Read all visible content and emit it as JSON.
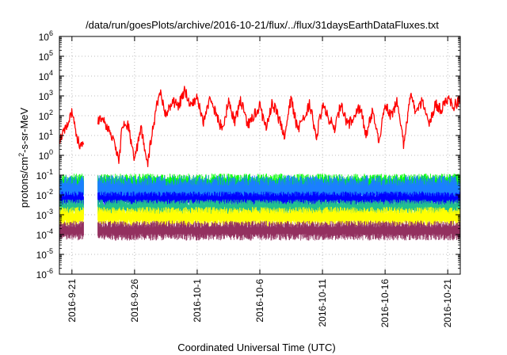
{
  "chart_data": {
    "type": "line",
    "title": "/data/run/goesPlots/archive/2016-10-21/flux/../flux/31daysEarthDataFluxes.txt",
    "xlabel": "Coordinated Universal Time (UTC)",
    "ylabel_base": "protons/cm",
    "ylabel_sup": "2",
    "ylabel_tail": "-s-sr-MeV",
    "y_scale": "log",
    "ylim": [
      1e-06,
      1000000.0
    ],
    "y_ticks": [
      {
        "value": 1e-06,
        "base": "10",
        "exp": "-6"
      },
      {
        "value": 1e-05,
        "base": "10",
        "exp": "-5"
      },
      {
        "value": 0.0001,
        "base": "10",
        "exp": "-4"
      },
      {
        "value": 0.001,
        "base": "10",
        "exp": "-3"
      },
      {
        "value": 0.01,
        "base": "10",
        "exp": "-2"
      },
      {
        "value": 0.1,
        "base": "10",
        "exp": "-1"
      },
      {
        "value": 1,
        "base": "10",
        "exp": "0"
      },
      {
        "value": 10.0,
        "base": "10",
        "exp": "1"
      },
      {
        "value": 100.0,
        "base": "10",
        "exp": "2"
      },
      {
        "value": 1000.0,
        "base": "10",
        "exp": "3"
      },
      {
        "value": 10000.0,
        "base": "10",
        "exp": "4"
      },
      {
        "value": 100000.0,
        "base": "10",
        "exp": "5"
      },
      {
        "value": 1000000.0,
        "base": "10",
        "exp": "6"
      }
    ],
    "xlim": [
      "2016-09-20",
      "2016-10-22"
    ],
    "x_ticks": [
      "2016-9-21",
      "2016-9-26",
      "2016-10-1",
      "2016-10-6",
      "2016-10-11",
      "2016-10-16",
      "2016-10-21"
    ],
    "x_tick_dates": [
      "2016-09-21",
      "2016-09-26",
      "2016-10-01",
      "2016-10-06",
      "2016-10-11",
      "2016-10-16",
      "2016-10-21"
    ],
    "grid": true,
    "data_gap": [
      "2016-09-22",
      "2016-09-23"
    ],
    "series": [
      {
        "color": "#ff0000",
        "points": [
          [
            "2016-09-20",
            5
          ],
          [
            "2016-09-20T12:00",
            30
          ],
          [
            "2016-09-21",
            150
          ],
          [
            "2016-09-21T12:00",
            5
          ],
          [
            "2016-09-22",
            2
          ],
          [
            "2016-09-22T06:00",
            40
          ],
          [
            "2016-09-23",
            70
          ],
          [
            "2016-09-23T12:00",
            60
          ],
          [
            "2016-09-24",
            20
          ],
          [
            "2016-09-24T12:00",
            3
          ],
          [
            "2016-09-24T18:00",
            0.3
          ],
          [
            "2016-09-25",
            40
          ],
          [
            "2016-09-25T12:00",
            30
          ],
          [
            "2016-09-26",
            0.5
          ],
          [
            "2016-09-26T12:00",
            30
          ],
          [
            "2016-09-27",
            0.3
          ],
          [
            "2016-09-27T12:00",
            30
          ],
          [
            "2016-09-28",
            2000
          ],
          [
            "2016-09-28T12:00",
            100
          ],
          [
            "2016-09-29",
            500
          ],
          [
            "2016-09-29T12:00",
            300
          ],
          [
            "2016-09-30",
            2000
          ],
          [
            "2016-09-30T12:00",
            300
          ],
          [
            "2016-10-01",
            1000
          ],
          [
            "2016-10-01T12:00",
            50
          ],
          [
            "2016-10-02",
            800
          ],
          [
            "2016-10-03",
            20
          ],
          [
            "2016-10-03T12:00",
            500
          ],
          [
            "2016-10-04",
            50
          ],
          [
            "2016-10-04T12:00",
            600
          ],
          [
            "2016-10-05",
            30
          ],
          [
            "2016-10-06",
            300
          ],
          [
            "2016-10-06T12:00",
            20
          ],
          [
            "2016-10-07",
            500
          ],
          [
            "2016-10-08",
            10
          ],
          [
            "2016-10-08T12:00",
            800
          ],
          [
            "2016-10-09",
            20
          ],
          [
            "2016-10-10",
            400
          ],
          [
            "2016-10-10T12:00",
            8
          ],
          [
            "2016-10-11",
            300
          ],
          [
            "2016-10-12",
            20
          ],
          [
            "2016-10-12T12:00",
            500
          ],
          [
            "2016-10-13",
            30
          ],
          [
            "2016-10-14",
            300
          ],
          [
            "2016-10-14T12:00",
            10
          ],
          [
            "2016-10-15",
            200
          ],
          [
            "2016-10-15T12:00",
            5
          ],
          [
            "2016-10-16",
            300
          ],
          [
            "2016-10-16T12:00",
            100
          ],
          [
            "2016-10-17",
            600
          ],
          [
            "2016-10-17T12:00",
            3
          ],
          [
            "2016-10-18",
            1000
          ],
          [
            "2016-10-18T12:00",
            150
          ],
          [
            "2016-10-19",
            600
          ],
          [
            "2016-10-19T12:00",
            30
          ],
          [
            "2016-10-20",
            400
          ],
          [
            "2016-10-20T12:00",
            200
          ],
          [
            "2016-10-21",
            800
          ],
          [
            "2016-10-21T12:00",
            300
          ],
          [
            "2016-10-22",
            700
          ]
        ]
      },
      {
        "color": "#00ff00",
        "band": [
          0.01,
          0.12
        ]
      },
      {
        "color": "#1a7fff",
        "band": [
          0.003,
          0.1
        ]
      },
      {
        "color": "#0000ff",
        "band": [
          0.0025,
          0.015
        ]
      },
      {
        "color": "#22c08f",
        "band": [
          0.0009,
          0.006
        ]
      },
      {
        "color": "#ffff00",
        "band": [
          0.00025,
          0.0025
        ]
      },
      {
        "color": "#93305f",
        "band": [
          5e-05,
          0.0005
        ]
      }
    ]
  }
}
